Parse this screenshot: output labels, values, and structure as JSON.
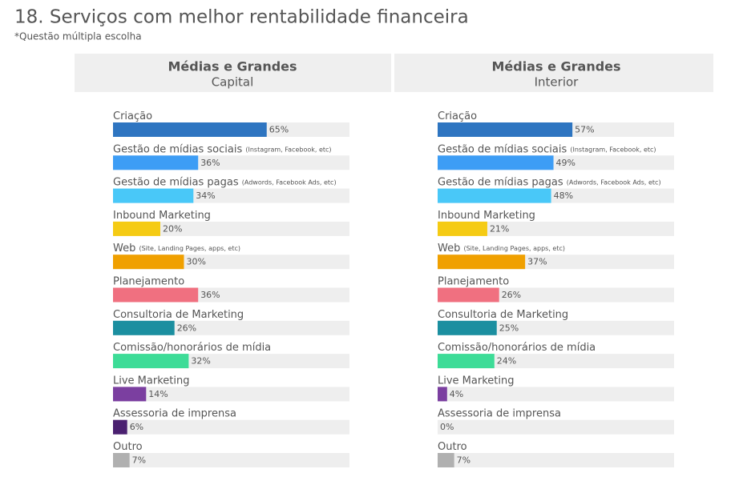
{
  "title": "18. Serviços com melhor rentabilidade financeira",
  "subtitle": "*Questão múltipla escolha",
  "chart_data": [
    {
      "type": "bar",
      "title": "Médias e Grandes",
      "subtitle": "Capital",
      "categories": [
        "Criação",
        "Gestão de mídias sociais",
        "Gestão de mídias pagas",
        "Inbound Marketing",
        "Web",
        "Planejamento",
        "Consultoria de Marketing",
        "Comissão/honorários de mídia",
        "Live Marketing",
        "Assessoria de imprensa",
        "Outro"
      ],
      "category_notes": [
        null,
        "(Instagram, Facebook, etc)",
        "(Adwords, Facebook Ads, etc)",
        null,
        "(Site, Landing Pages, apps, etc)",
        null,
        null,
        null,
        null,
        null,
        null
      ],
      "values": [
        65,
        36,
        34,
        20,
        30,
        36,
        26,
        32,
        14,
        6,
        7
      ],
      "value_labels": [
        "65%",
        "36%",
        "34%",
        "20%",
        "30%",
        "36%",
        "26%",
        "32%",
        "14%",
        "6%",
        "7%"
      ],
      "colors": [
        "#2e75c1",
        "#3d9df5",
        "#49c8f8",
        "#f5cb14",
        "#f0a000",
        "#f07080",
        "#1b8fa0",
        "#3ddc97",
        "#7b3fa0",
        "#4a2070",
        "#b0b0b0"
      ],
      "xlim": [
        0,
        100
      ]
    },
    {
      "type": "bar",
      "title": "Médias e Grandes",
      "subtitle": "Interior",
      "categories": [
        "Criação",
        "Gestão de mídias sociais",
        "Gestão de mídias pagas",
        "Inbound Marketing",
        "Web",
        "Planejamento",
        "Consultoria de Marketing",
        "Comissão/honorários de mídia",
        "Live Marketing",
        "Assessoria de imprensa",
        "Outro"
      ],
      "category_notes": [
        null,
        "(Instagram, Facebook, etc)",
        "(Adwords, Facebook Ads, etc)",
        null,
        "(Site, Landing Pages, apps, etc)",
        null,
        null,
        null,
        null,
        null,
        null
      ],
      "values": [
        57,
        49,
        48,
        21,
        37,
        26,
        25,
        24,
        4,
        0,
        7
      ],
      "value_labels": [
        "57%",
        "49%",
        "48%",
        "21%",
        "37%",
        "26%",
        "25%",
        "24%",
        "4%",
        "0%",
        "7%"
      ],
      "colors": [
        "#2e75c1",
        "#3d9df5",
        "#49c8f8",
        "#f5cb14",
        "#f0a000",
        "#f07080",
        "#1b8fa0",
        "#3ddc97",
        "#7b3fa0",
        "#4a2070",
        "#b0b0b0"
      ],
      "xlim": [
        0,
        100
      ]
    }
  ]
}
